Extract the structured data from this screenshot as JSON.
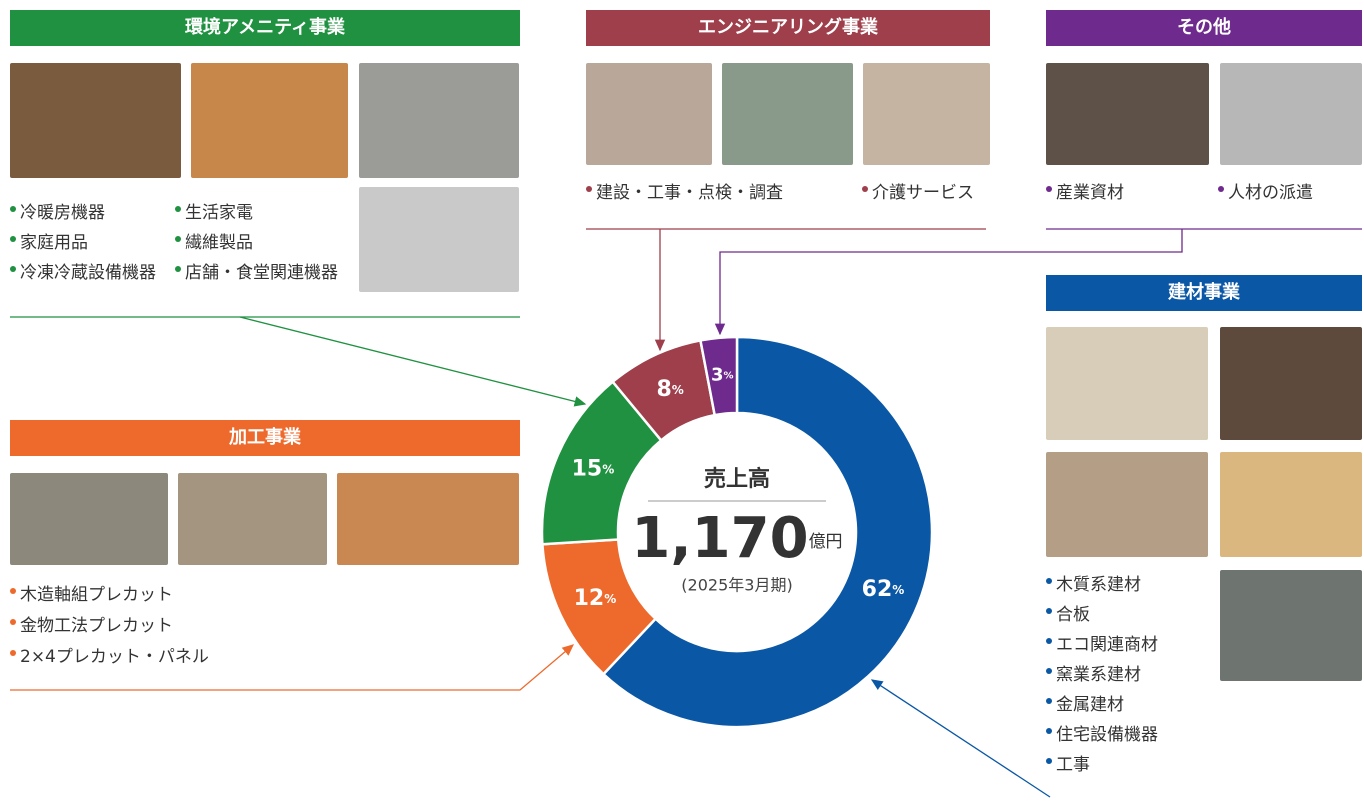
{
  "chart_data": {
    "type": "donut",
    "categories": [
      "建材事業",
      "加工事業",
      "環境アメニティ事業",
      "エンジニアリング事業",
      "その他"
    ],
    "values": [
      62,
      12,
      15,
      8,
      3
    ],
    "value_unit": "%",
    "colors": [
      "#0a57a6",
      "#ee6a2c",
      "#1f9140",
      "#9e3f4b",
      "#6e2a8c"
    ],
    "center_title": "売上高",
    "center_value": "1,170",
    "center_unit": "億円",
    "center_note": "(2025年3月期)"
  },
  "sections": {
    "amenity": {
      "items": [
        "冷暖房機器",
        "家庭用品",
        "冷凍冷蔵設備機器",
        "生活家電",
        "繊維製品",
        "店舗・食堂関連機器"
      ]
    },
    "engineering": {
      "items": [
        "建設・工事・点検・調査",
        "介護サービス"
      ]
    },
    "other": {
      "items": [
        "産業資材",
        "人材の派遣"
      ]
    },
    "materials": {
      "items": [
        "木質系建材",
        "合板",
        "エコ関連商材",
        "窯業系建材",
        "金属建材",
        "住宅設備機器",
        "工事"
      ]
    },
    "processing": {
      "items": [
        "木造軸組プレカット",
        "金物工法プレカット",
        "2×4プレカット・パネル"
      ]
    }
  }
}
